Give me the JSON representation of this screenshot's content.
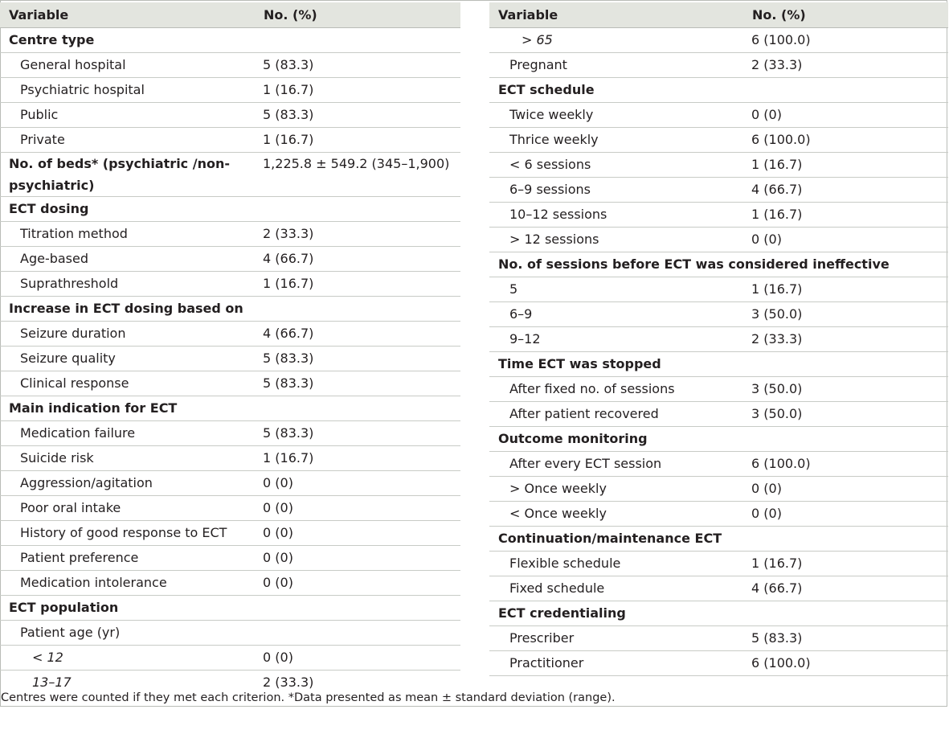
{
  "header": {
    "variable": "Variable",
    "value": "No. (%)"
  },
  "left_rows": [
    {
      "label": "Centre type",
      "value": "",
      "level": 0
    },
    {
      "label": "General hospital",
      "value": "5 (83.3)",
      "level": 1
    },
    {
      "label": "Psychiatric hospital",
      "value": "1 (16.7)",
      "level": 1
    },
    {
      "label": "Public",
      "value": "5 (83.3)",
      "level": 1
    },
    {
      "label": "Private",
      "value": "1 (16.7)",
      "level": 1
    },
    {
      "label": "No. of beds* (psychiatric /non-psychiatric)",
      "value": "1,225.8 ± 549.2 (345–1,900)",
      "level": 0,
      "tall": true
    },
    {
      "label": "ECT dosing",
      "value": "",
      "level": 0
    },
    {
      "label": "Titration method",
      "value": "2 (33.3)",
      "level": 1
    },
    {
      "label": "Age-based",
      "value": "4 (66.7)",
      "level": 1
    },
    {
      "label": "Suprathreshold",
      "value": "1 (16.7)",
      "level": 1
    },
    {
      "label": "Increase in ECT dosing based on",
      "value": "",
      "level": 0
    },
    {
      "label": "Seizure duration",
      "value": "4 (66.7)",
      "level": 1
    },
    {
      "label": "Seizure quality",
      "value": "5 (83.3)",
      "level": 1
    },
    {
      "label": "Clinical response",
      "value": "5 (83.3)",
      "level": 1
    },
    {
      "label": "Main indication for ECT",
      "value": "",
      "level": 0
    },
    {
      "label": "Medication failure",
      "value": "5 (83.3)",
      "level": 1
    },
    {
      "label": "Suicide risk",
      "value": "1 (16.7)",
      "level": 1
    },
    {
      "label": "Aggression/agitation",
      "value": "0 (0)",
      "level": 1
    },
    {
      "label": "Poor oral intake",
      "value": "0 (0)",
      "level": 1
    },
    {
      "label": "History of good response to ECT",
      "value": "0 (0)",
      "level": 1
    },
    {
      "label": "Patient preference",
      "value": "0 (0)",
      "level": 1
    },
    {
      "label": "Medication intolerance",
      "value": "0 (0)",
      "level": 1
    },
    {
      "label": "ECT population",
      "value": "",
      "level": 0
    },
    {
      "label": "Patient age (yr)",
      "value": "",
      "level": 1
    },
    {
      "label": "< 12",
      "value": "0 (0)",
      "level": 2
    },
    {
      "label": "13–17",
      "value": "2 (33.3)",
      "level": 2
    }
  ],
  "right_rows": [
    {
      "label": "> 65",
      "value": "6 (100.0)",
      "level": 2
    },
    {
      "label": "Pregnant",
      "value": "2 (33.3)",
      "level": 1
    },
    {
      "label": "ECT schedule",
      "value": "",
      "level": 0
    },
    {
      "label": "Twice weekly",
      "value": "0 (0)",
      "level": 1
    },
    {
      "label": "Thrice weekly",
      "value": "6 (100.0)",
      "level": 1
    },
    {
      "label": "< 6 sessions",
      "value": "1 (16.7)",
      "level": 1
    },
    {
      "label": "6–9 sessions",
      "value": "4 (66.7)",
      "level": 1
    },
    {
      "label": "10–12 sessions",
      "value": "1 (16.7)",
      "level": 1
    },
    {
      "label": "> 12 sessions",
      "value": "0 (0)",
      "level": 1
    },
    {
      "label": "No. of sessions before ECT was considered ineffective",
      "value": "",
      "level": 0
    },
    {
      "label": "5",
      "value": "1 (16.7)",
      "level": 1
    },
    {
      "label": "6–9",
      "value": "3 (50.0)",
      "level": 1
    },
    {
      "label": "9–12",
      "value": "2 (33.3)",
      "level": 1
    },
    {
      "label": "Time ECT was stopped",
      "value": "",
      "level": 0
    },
    {
      "label": "After fixed no. of sessions",
      "value": "3 (50.0)",
      "level": 1
    },
    {
      "label": "After patient recovered",
      "value": "3 (50.0)",
      "level": 1
    },
    {
      "label": "Outcome monitoring",
      "value": "",
      "level": 0
    },
    {
      "label": "After every ECT session",
      "value": "6 (100.0)",
      "level": 1
    },
    {
      "label": "> Once weekly",
      "value": "0 (0)",
      "level": 1
    },
    {
      "label": "< Once weekly",
      "value": "0 (0)",
      "level": 1
    },
    {
      "label": "Continuation/maintenance ECT",
      "value": "",
      "level": 0
    },
    {
      "label": "Flexible schedule",
      "value": "1 (16.7)",
      "level": 1
    },
    {
      "label": "Fixed schedule",
      "value": "4 (66.7)",
      "level": 1
    },
    {
      "label": "ECT credentialing",
      "value": "",
      "level": 0
    },
    {
      "label": "Prescriber",
      "value": "5 (83.3)",
      "level": 1
    },
    {
      "label": "Practitioner",
      "value": "6 (100.0)",
      "level": 1
    }
  ],
  "footnote": "Centres were counted if they met each criterion. *Data presented as mean ± standard deviation (range)."
}
